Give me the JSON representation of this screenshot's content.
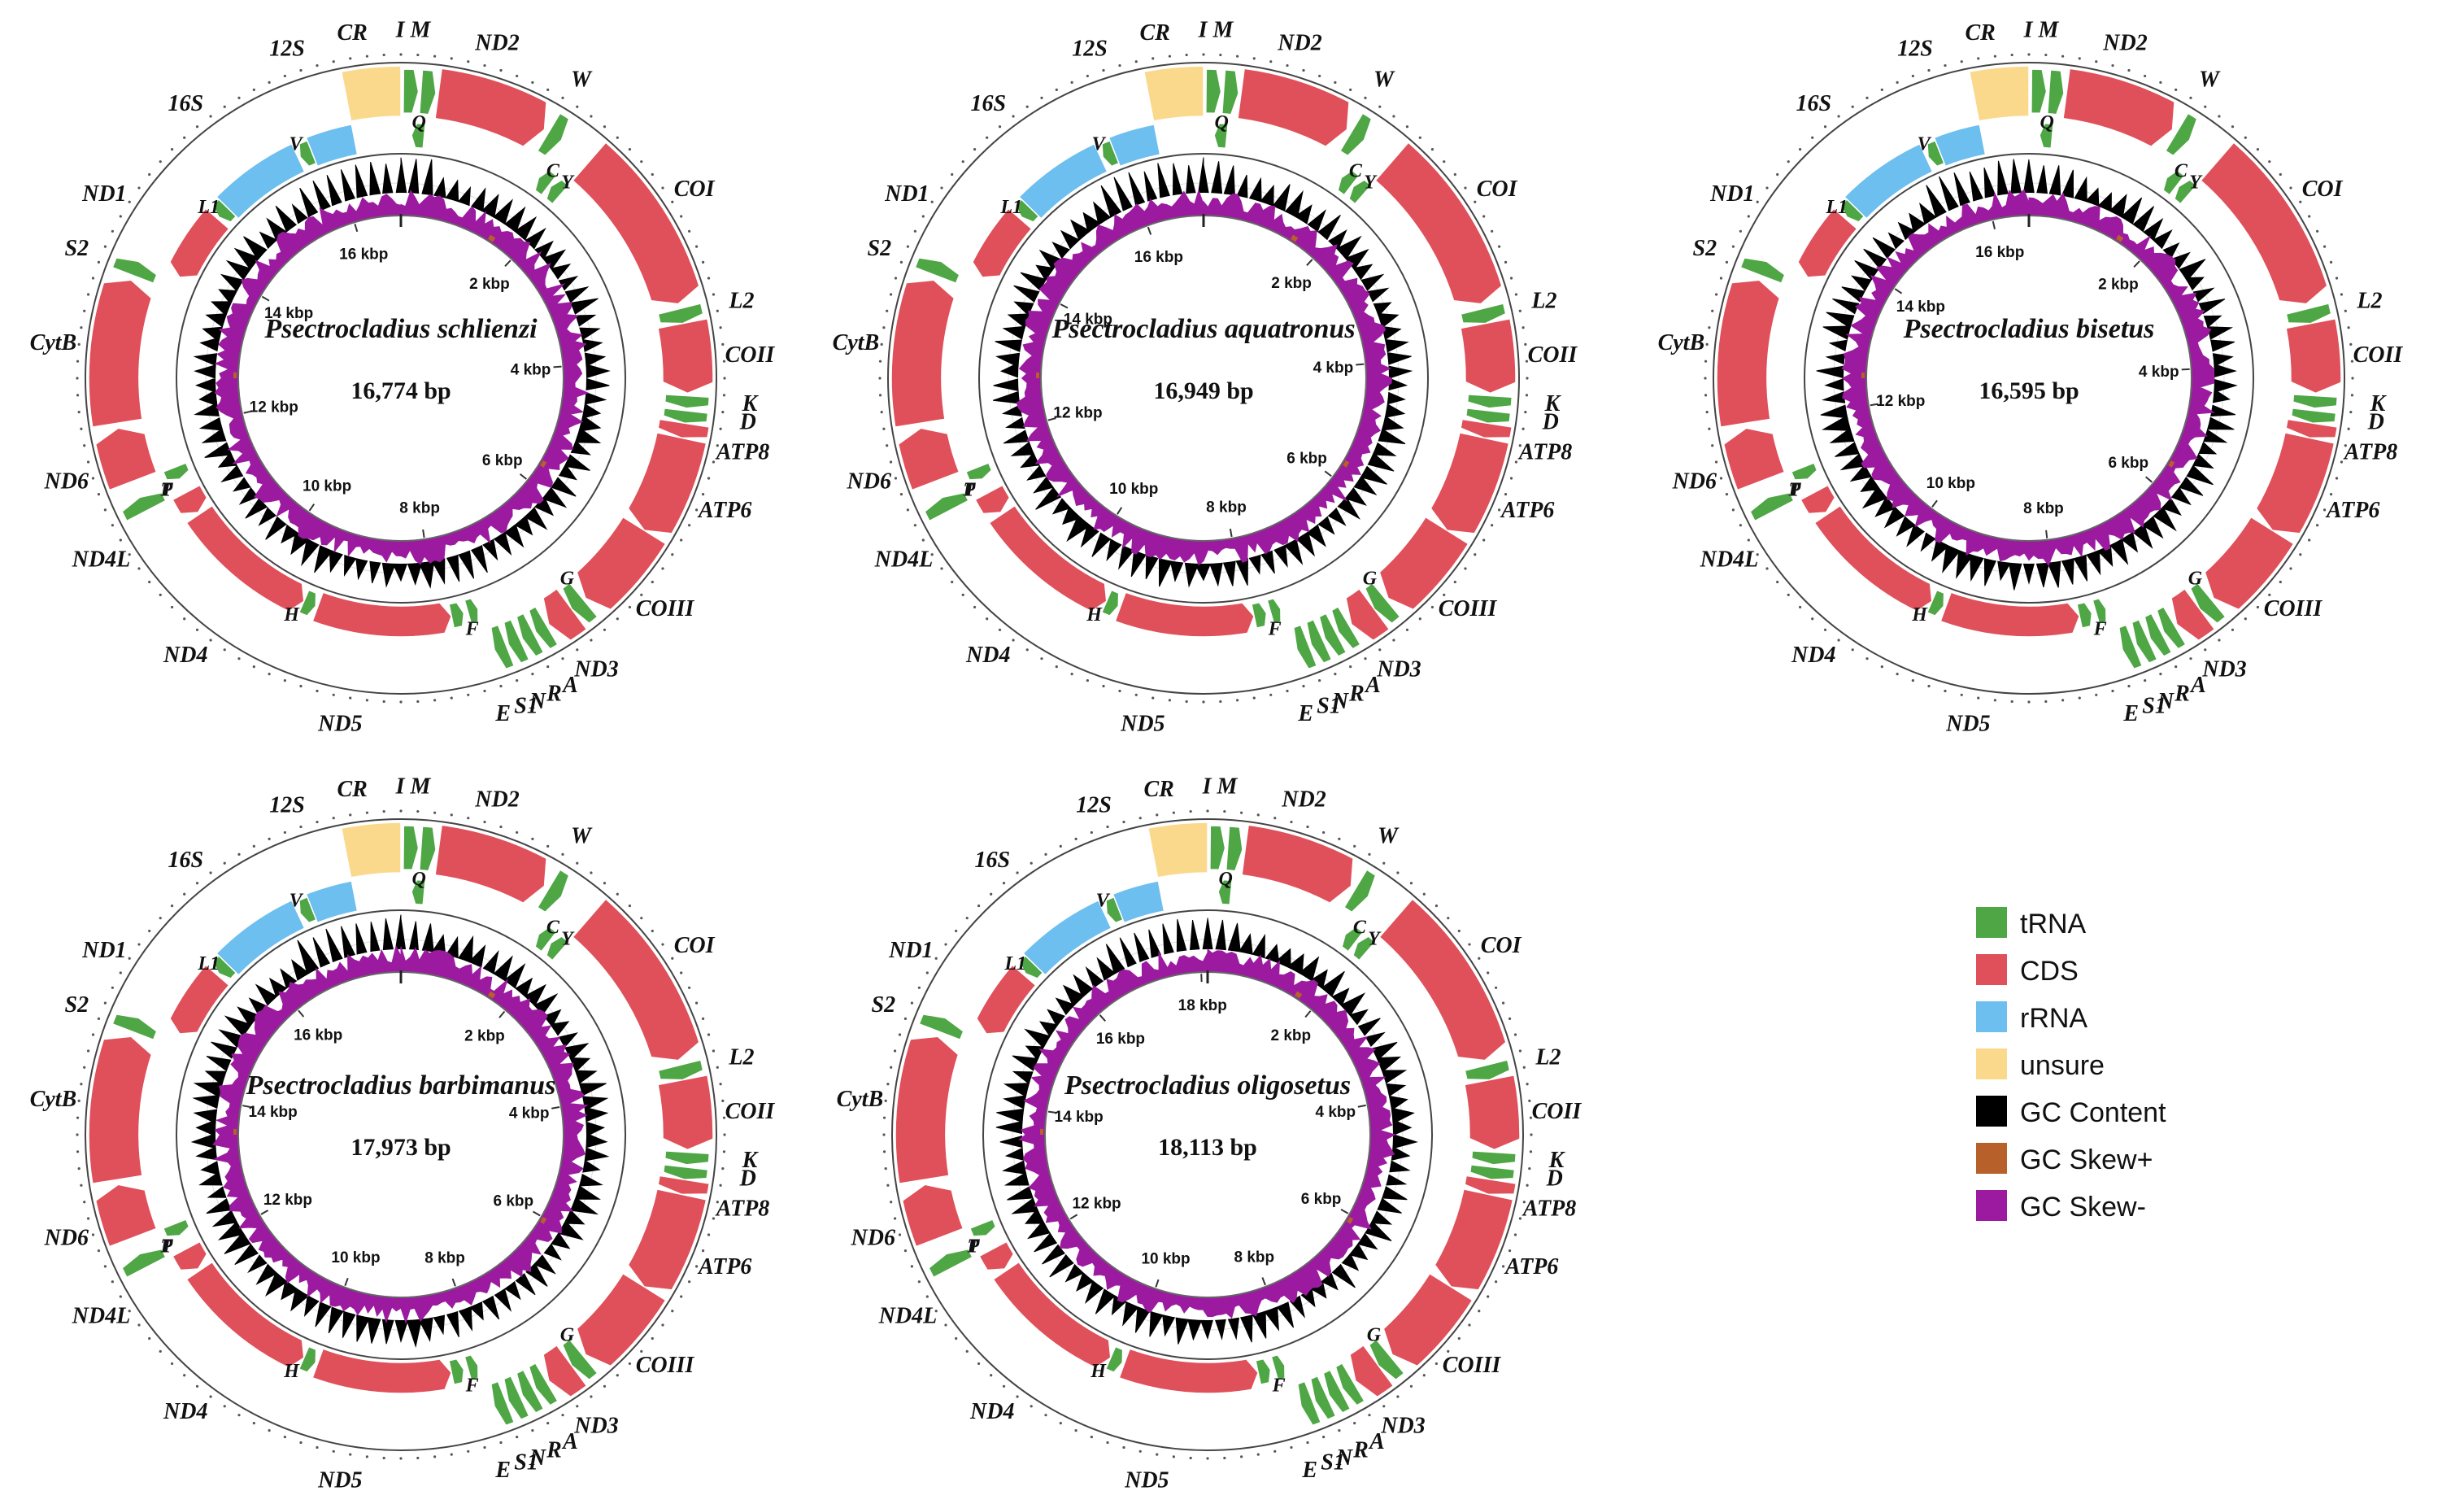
{
  "colors": {
    "tRNA": "#4ea645",
    "CDS": "#e0505a",
    "rRNA": "#6cbfee",
    "unsure": "#fad98c",
    "gc_content": "#000000",
    "gc_skew_plus": "#b8602a",
    "gc_skew_minus": "#9c1aa0"
  },
  "legend": [
    {
      "key": "tRNA",
      "label": "tRNA"
    },
    {
      "key": "CDS",
      "label": "CDS"
    },
    {
      "key": "rRNA",
      "label": "rRNA"
    },
    {
      "key": "unsure",
      "label": "unsure"
    },
    {
      "key": "gc_content",
      "label": "GC Content"
    },
    {
      "key": "gc_skew_plus",
      "label": "GC Skew+"
    },
    {
      "key": "gc_skew_minus",
      "label": "GC Skew-"
    }
  ],
  "maps": [
    {
      "species": "Psectrocladius schlienzi",
      "size_label": "16,774 bp",
      "length_kbp": 16.774,
      "ticks": [
        "2 kbp",
        "4 kbp",
        "6 kbp",
        "8 kbp",
        "10 kbp",
        "12 kbp",
        "14 kbp",
        "16 kbp"
      ],
      "gene_labels": [
        "I M",
        "ND2",
        "W",
        "Q",
        "C",
        "Y",
        "COI",
        "L2",
        "COII",
        "K",
        "D",
        "ATP8",
        "ATP6",
        "COIII",
        "G",
        "ND3",
        "A",
        "R",
        "N",
        "S1",
        "E",
        "F",
        "ND5",
        "H",
        "ND4",
        "ND4L",
        "T",
        "P",
        "ND6",
        "CytB",
        "S2",
        "ND1",
        "L1",
        "16S",
        "V",
        "12S",
        "CR"
      ]
    },
    {
      "species": "Psectrocladius aquatronus",
      "size_label": "16,949 bp",
      "length_kbp": 16.949,
      "ticks": [
        "2 kbp",
        "4 kbp",
        "6 kbp",
        "8 kbp",
        "10 kbp",
        "12 kbp",
        "14 kbp",
        "16 kbp"
      ],
      "gene_labels": [
        "I M",
        "ND2",
        "W",
        "Q",
        "C",
        "Y",
        "COI",
        "L2",
        "COII",
        "K",
        "D",
        "ATP8",
        "ATP6",
        "COIII",
        "G",
        "ND3",
        "A",
        "R",
        "N",
        "S1",
        "E",
        "F",
        "ND5",
        "H",
        "ND4",
        "ND4L",
        "T",
        "P",
        "ND6",
        "CytB",
        "S2",
        "ND1",
        "L1",
        "16S",
        "V",
        "12S",
        "CR"
      ]
    },
    {
      "species": "Psectrocladius bisetus",
      "size_label": "16,595 bp",
      "length_kbp": 16.595,
      "ticks": [
        "2 kbp",
        "4 kbp",
        "6 kbp",
        "8 kbp",
        "10 kbp",
        "12 kbp",
        "14 kbp",
        "16 kbp"
      ],
      "gene_labels": [
        "I M",
        "ND2",
        "W",
        "Q",
        "C",
        "Y",
        "COI",
        "L2",
        "COII",
        "K",
        "D",
        "ATP8",
        "ATP6",
        "COIII",
        "G",
        "ND3",
        "A",
        "R",
        "N",
        "S1",
        "E",
        "F",
        "ND5",
        "H",
        "ND4",
        "ND4L",
        "T",
        "P",
        "ND6",
        "CytB",
        "S2",
        "ND1",
        "L1",
        "16S",
        "V",
        "12S",
        "CR"
      ]
    },
    {
      "species": "Psectrocladius barbimanus",
      "size_label": "17,973 bp",
      "length_kbp": 17.973,
      "ticks": [
        "2 kbp",
        "4 kbp",
        "6 kbp",
        "8 kbp",
        "10 kbp",
        "12 kbp",
        "14 kbp",
        "16 kbp"
      ],
      "gene_labels": [
        "I M",
        "ND2",
        "W",
        "Q",
        "C",
        "Y",
        "COI",
        "L2",
        "COII",
        "K",
        "D",
        "ATP8",
        "ATP6",
        "COIII",
        "G",
        "ND3",
        "A",
        "R",
        "N",
        "S1",
        "E",
        "F",
        "ND5",
        "H",
        "ND4",
        "ND4L",
        "T",
        "P",
        "ND6",
        "CytB",
        "S2",
        "ND1",
        "L1",
        "16S",
        "V",
        "12S",
        "CR"
      ]
    },
    {
      "species": "Psectrocladius oligosetus",
      "size_label": "18,113 bp",
      "length_kbp": 18.113,
      "ticks": [
        "2 kbp",
        "4 kbp",
        "6 kbp",
        "8 kbp",
        "10 kbp",
        "12 kbp",
        "14 kbp",
        "16 kbp",
        "18 kbp"
      ],
      "gene_labels": [
        "I M",
        "ND2",
        "W",
        "Q",
        "C",
        "Y",
        "COI",
        "L2",
        "COII",
        "K",
        "D",
        "ATP8",
        "ATP6",
        "COIII",
        "G",
        "ND3",
        "A",
        "R",
        "N",
        "S1",
        "E",
        "F",
        "ND5",
        "H",
        "ND4",
        "ND4L",
        "T",
        "P",
        "ND6",
        "CytB",
        "S2",
        "ND1",
        "L1",
        "16S",
        "V",
        "12S",
        "CR"
      ]
    }
  ]
}
